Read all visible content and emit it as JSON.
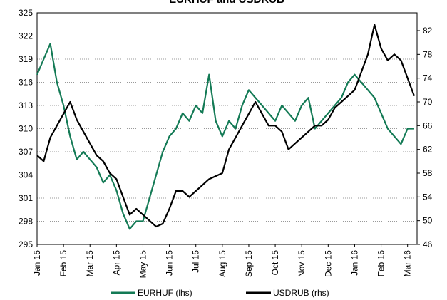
{
  "chart_data": {
    "type": "line",
    "title": "EURHUF and USDRUB",
    "categories": [
      "Jan 15",
      null,
      null,
      null,
      "Feb 15",
      null,
      null,
      null,
      "Mar 15",
      null,
      null,
      null,
      "Apr 15",
      null,
      null,
      null,
      "May 15",
      null,
      null,
      null,
      "Jun 15",
      null,
      null,
      null,
      "Jul 15",
      null,
      null,
      null,
      "Aug 15",
      null,
      null,
      null,
      "Sep 15",
      null,
      null,
      null,
      "Oct 15",
      null,
      null,
      null,
      "Nov 15",
      null,
      null,
      null,
      "Dec 15",
      null,
      null,
      null,
      "Jan 16",
      null,
      null,
      null,
      "Feb 16",
      null,
      null,
      null,
      "Mar 16",
      null
    ],
    "series": [
      {
        "name": "EURHUF (lhs)",
        "color": "#137a55",
        "values": [
          317,
          319,
          321,
          316,
          313,
          309,
          306,
          307,
          306,
          305,
          303,
          304,
          302,
          299,
          297,
          298,
          298,
          301,
          304,
          307,
          309,
          310,
          312,
          311,
          313,
          312,
          317,
          311,
          309,
          311,
          310,
          313,
          315,
          314,
          313,
          312,
          311,
          313,
          312,
          311,
          313,
          314,
          310,
          311,
          312,
          313,
          314,
          316,
          317,
          316,
          315,
          314,
          312,
          310,
          309,
          308,
          310,
          310
        ]
      },
      {
        "name": "USDRUB (rhs)",
        "color": "#000000",
        "axis": "y2",
        "values": [
          61,
          60,
          64,
          66,
          68,
          70,
          67,
          65,
          63,
          61,
          60,
          58,
          57,
          54,
          51,
          52,
          51,
          50,
          49,
          49.5,
          52,
          55,
          55,
          54,
          55,
          56,
          57,
          57.5,
          58,
          62,
          64,
          66,
          68,
          70,
          68,
          66,
          66,
          65,
          62,
          63,
          64,
          65,
          66,
          66,
          67,
          69,
          70,
          71,
          72,
          75,
          78,
          83,
          79,
          77,
          78,
          77,
          74,
          71
        ]
      }
    ],
    "ylim": [
      295,
      325
    ],
    "yticks": [
      295,
      298,
      301,
      304,
      307,
      310,
      313,
      316,
      319,
      322,
      325
    ],
    "y2lim": [
      46,
      85
    ],
    "y2ticks": [
      46,
      50,
      54,
      58,
      62,
      66,
      70,
      74,
      78,
      82
    ],
    "grid": true,
    "legend": "bottom"
  }
}
